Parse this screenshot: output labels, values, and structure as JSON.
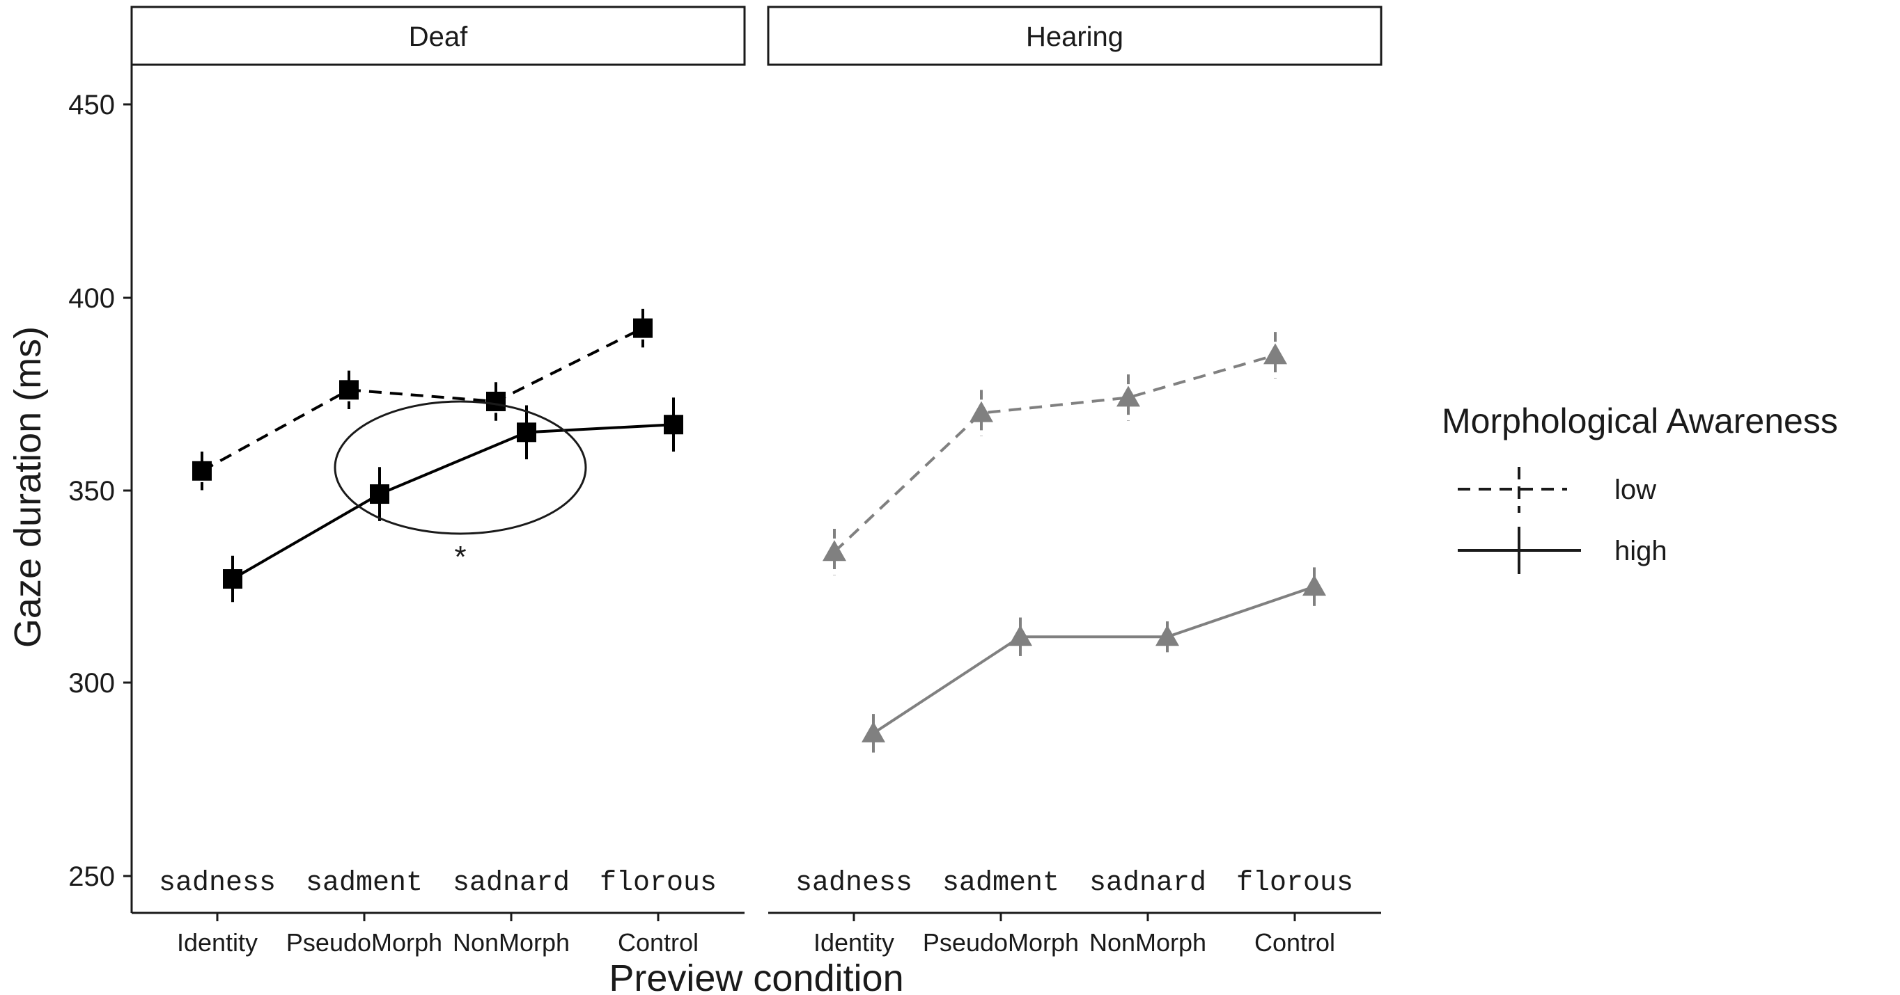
{
  "chart_data": {
    "type": "line",
    "ylabel": "Gaze duration (ms)",
    "xlabel": "Preview condition",
    "ylim": [
      250,
      460
    ],
    "yticks": [
      250,
      300,
      350,
      400,
      450
    ],
    "categories": [
      "Identity",
      "PseudoMorph",
      "NonMorph",
      "Control"
    ],
    "preview_words": [
      "sadness",
      "sadment",
      "sadnard",
      "florous"
    ],
    "legend": {
      "title": "Morphological Awareness",
      "entries": [
        {
          "label": "low",
          "linestyle": "dashed"
        },
        {
          "label": "high",
          "linestyle": "solid"
        }
      ],
      "position": "right"
    },
    "panels": [
      {
        "name": "Deaf",
        "color": "#000000",
        "marker": "square",
        "series": [
          {
            "name": "low",
            "values": [
              355,
              376,
              373,
              392
            ],
            "err": [
              5,
              5,
              5,
              5
            ]
          },
          {
            "name": "high",
            "values": [
              327,
              349,
              365,
              367
            ],
            "err": [
              6,
              7,
              7,
              7
            ]
          }
        ],
        "annotation": {
          "type": "ellipse",
          "label": "*",
          "around": [
            "PseudoMorph",
            "NonMorph"
          ],
          "series": "high"
        }
      },
      {
        "name": "Hearing",
        "color": "#808080",
        "marker": "triangle",
        "series": [
          {
            "name": "low",
            "values": [
              334,
              370,
              374,
              385
            ],
            "err": [
              6,
              6,
              6,
              6
            ]
          },
          {
            "name": "high",
            "values": [
              287,
              312,
              312,
              325
            ],
            "err": [
              5,
              5,
              4,
              5
            ]
          }
        ]
      }
    ]
  }
}
